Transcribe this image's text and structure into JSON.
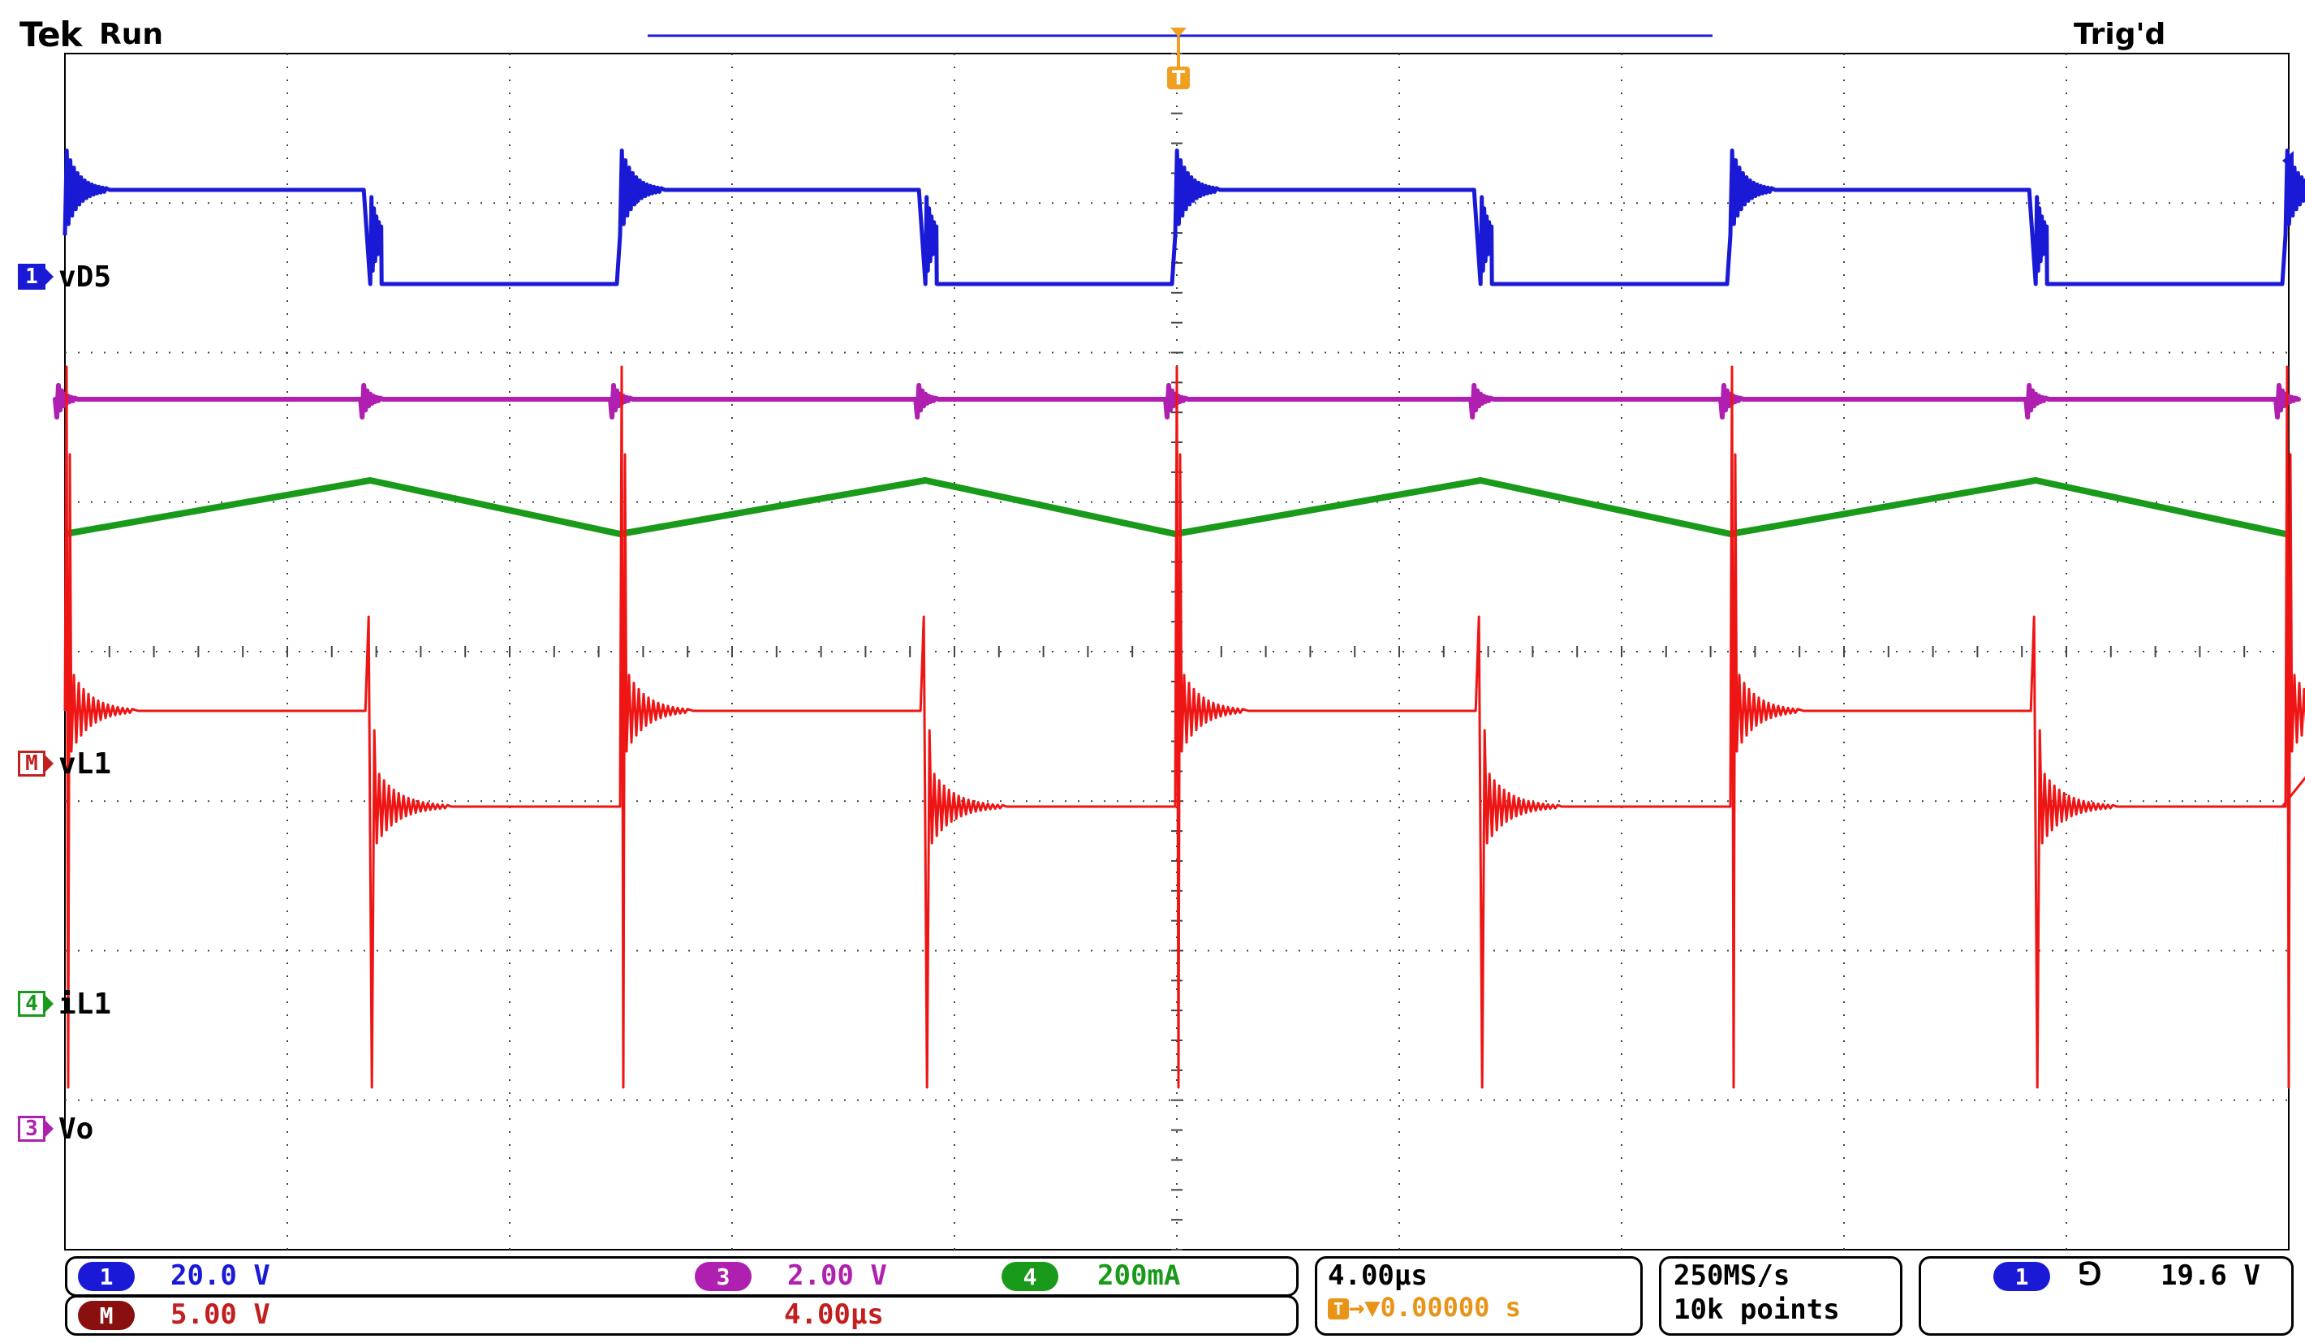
{
  "header": {
    "brand": "Tek",
    "status": "Run",
    "trigger_state": "Trig'd"
  },
  "channels": [
    {
      "id": "1",
      "label": "vD5",
      "color": "#1a1ad6",
      "marker_style": "filled"
    },
    {
      "id": "M",
      "label": "vL1",
      "color": "#c22020",
      "marker_style": "outline"
    },
    {
      "id": "4",
      "label": "iL1",
      "color": "#1a9a1a",
      "marker_style": "outline"
    },
    {
      "id": "3",
      "label": "Vo",
      "color": "#b020b0",
      "marker_style": "outline"
    }
  ],
  "readouts": {
    "ch1": {
      "badge": "1",
      "value": "20.0 V",
      "color": "#1a1ad6"
    },
    "ch3": {
      "badge": "3",
      "value": "2.00 V",
      "color": "#b020b0"
    },
    "ch4": {
      "badge": "4",
      "value": "200mA",
      "color": "#1a9a1a"
    },
    "math": {
      "badge": "M",
      "value": "5.00 V",
      "time": "4.00µs",
      "color": "#c22020"
    },
    "timebase": {
      "per_div": "4.00µs",
      "trigger_pos_value": "▼0.00000 s"
    },
    "acquisition": {
      "rate": "250MS/s",
      "record": "10k points"
    },
    "trigger": {
      "source": "1",
      "slope_symbol": "⅁",
      "level": "19.6 V"
    }
  },
  "trigger_marker": "T",
  "trace_colors": {
    "ch1": "#1a1ad6",
    "ch3": "#b020b0",
    "ch4": "#1a9a1a",
    "math": "#ee1515"
  }
}
